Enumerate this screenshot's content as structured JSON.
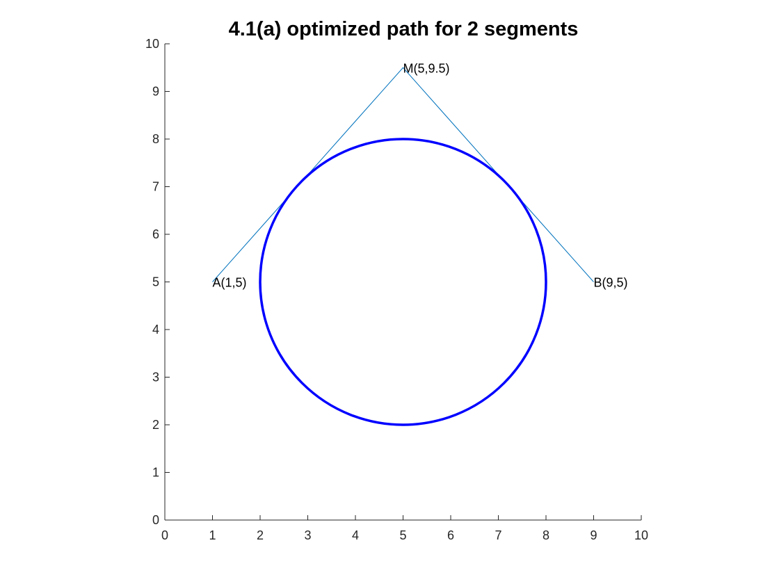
{
  "chart_data": {
    "type": "line",
    "title": "4.1(a) optimized path for 2 segments",
    "xlabel": "",
    "ylabel": "",
    "xlim": [
      0,
      10
    ],
    "ylim": [
      0,
      10
    ],
    "grid": false,
    "x_ticks": [
      0,
      1,
      2,
      3,
      4,
      5,
      6,
      7,
      8,
      9,
      10
    ],
    "y_ticks": [
      0,
      1,
      2,
      3,
      4,
      5,
      6,
      7,
      8,
      9,
      10
    ],
    "x_tick_labels": [
      "0",
      "1",
      "2",
      "3",
      "4",
      "5",
      "6",
      "7",
      "8",
      "9",
      "10"
    ],
    "y_tick_labels": [
      "0",
      "1",
      "2",
      "3",
      "4",
      "5",
      "6",
      "7",
      "8",
      "9",
      "10"
    ],
    "series": [
      {
        "type": "polyline",
        "color": "#0072BD",
        "points": [
          [
            1,
            5
          ],
          [
            5,
            9.5
          ],
          [
            9,
            5
          ]
        ]
      },
      {
        "type": "circle",
        "color": "#0000FF",
        "center": [
          5,
          5
        ],
        "radius": 3
      }
    ],
    "annotations": [
      {
        "text": "A(1,5)",
        "x": 1,
        "y": 5
      },
      {
        "text": "M(5,9.5)",
        "x": 5,
        "y": 9.5
      },
      {
        "text": "B(9,5)",
        "x": 9,
        "y": 5
      }
    ]
  }
}
